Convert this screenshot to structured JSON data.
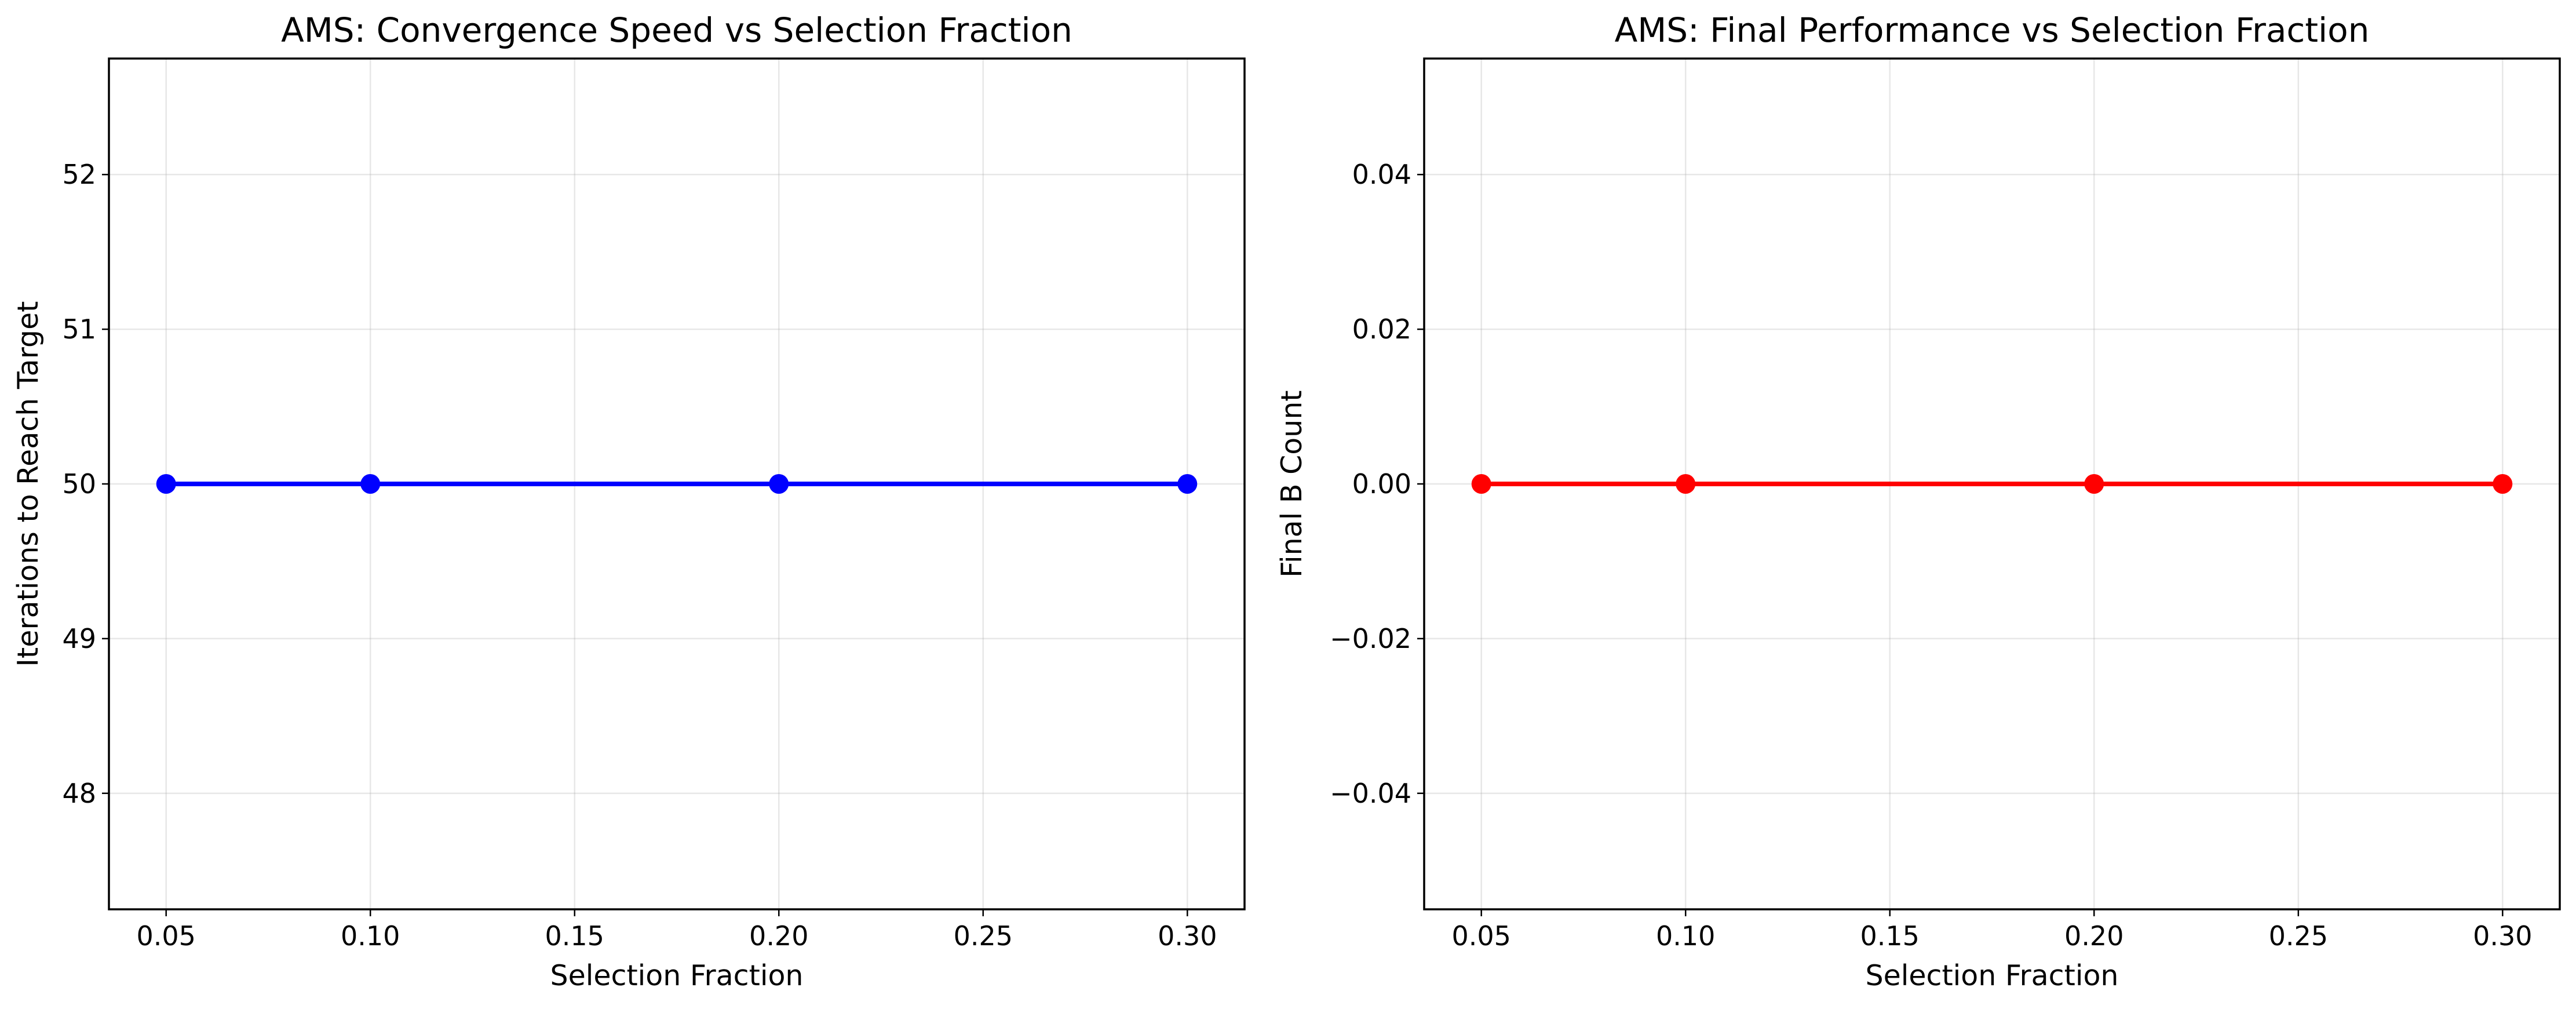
{
  "chart_data": [
    {
      "type": "line",
      "title": "AMS: Convergence Speed vs Selection Fraction",
      "xlabel": "Selection Fraction",
      "ylabel": "Iterations to Reach Target",
      "x": [
        0.05,
        0.1,
        0.2,
        0.3
      ],
      "series": [
        {
          "values": [
            50,
            50,
            50,
            50
          ],
          "color": "#0000ff",
          "marker": "circle"
        }
      ],
      "xlim": [
        0.036,
        0.314
      ],
      "ylim": [
        47.25,
        52.75
      ],
      "xticks": [
        0.05,
        0.1,
        0.15,
        0.2,
        0.25,
        0.3
      ],
      "xtick_labels": [
        "0.05",
        "0.10",
        "0.15",
        "0.20",
        "0.25",
        "0.30"
      ],
      "yticks": [
        48,
        49,
        50,
        51,
        52
      ],
      "ytick_labels": [
        "48",
        "49",
        "50",
        "51",
        "52"
      ],
      "grid": true
    },
    {
      "type": "line",
      "title": "AMS: Final Performance vs Selection Fraction",
      "xlabel": "Selection Fraction",
      "ylabel": "Final B Count",
      "x": [
        0.05,
        0.1,
        0.2,
        0.3
      ],
      "series": [
        {
          "values": [
            0,
            0,
            0,
            0
          ],
          "color": "#ff0000",
          "marker": "circle"
        }
      ],
      "xlim": [
        0.036,
        0.314
      ],
      "ylim": [
        -0.055,
        0.055
      ],
      "xticks": [
        0.05,
        0.1,
        0.15,
        0.2,
        0.25,
        0.3
      ],
      "xtick_labels": [
        "0.05",
        "0.10",
        "0.15",
        "0.20",
        "0.25",
        "0.30"
      ],
      "yticks": [
        -0.04,
        -0.02,
        0,
        0.02,
        0.04
      ],
      "ytick_labels": [
        "−0.04",
        "−0.02",
        "0.00",
        "0.02",
        "0.04"
      ],
      "grid": true
    }
  ]
}
